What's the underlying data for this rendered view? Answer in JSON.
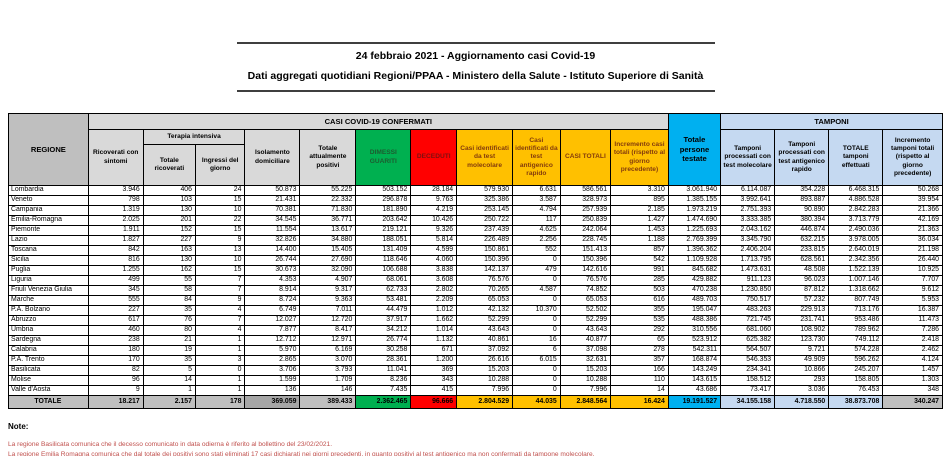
{
  "title": {
    "line1": "24 febbraio 2021 - Aggiornamento casi Covid-19",
    "line2": "Dati aggregati quotidiani Regioni/PPAA - Ministero della Salute - Istituto Superiore di Sanità"
  },
  "table": {
    "header": {
      "regione": "REGIONE",
      "casi_confermati_group": "CASI COVID-19 CONFERMATI",
      "tamponi_group": "TAMPONI",
      "terapia_intensiva_group": "Terapia intensiva",
      "cols": {
        "ricoverati": "Ricoverati con sintomi",
        "totale_ricoverati": "Totale ricoverati",
        "ingressi_giorno": "Ingressi del giorno",
        "isolamento": "Isolamento domiciliare",
        "attualmente_positivi": "Totale attualmente positivi",
        "dimessi_guariti": "DIMESSI GUARITI",
        "deceduti": "DECEDUTI",
        "casi_molecolare": "Casi identificati da test molecolare",
        "casi_antigenico": "Casi identificati da test antigenico rapido",
        "casi_totali": "CASI TOTALI",
        "incremento_casi": "Incremento casi totali (rispetto al giorno precedente)",
        "persone_testate": "Totale persone testate",
        "tamponi_molecolare": "Tamponi processati con test molecolare",
        "tamponi_antigenico": "Tamponi processati con test antigenico rapido",
        "totale_tamponi": "TOTALE tamponi effettuati",
        "incremento_tamponi": "Incremento tamponi totali (rispetto al giorno precedente)"
      }
    },
    "rows": [
      [
        "Lombardia",
        "3.946",
        "406",
        "24",
        "50.873",
        "55.225",
        "503.152",
        "28.184",
        "579.930",
        "6.631",
        "586.561",
        "3.310",
        "3.061.940",
        "6.114.087",
        "354.228",
        "6.468.315",
        "50.268"
      ],
      [
        "Veneto",
        "798",
        "103",
        "15",
        "21.431",
        "22.332",
        "296.878",
        "9.763",
        "325.386",
        "3.587",
        "328.973",
        "895",
        "1.385.155",
        "3.992.641",
        "893.887",
        "4.886.528",
        "39.954"
      ],
      [
        "Campania",
        "1.319",
        "130",
        "10",
        "70.381",
        "71.830",
        "181.890",
        "4.219",
        "253.145",
        "4.794",
        "257.939",
        "2.185",
        "1.973.219",
        "2.751.393",
        "90.890",
        "2.842.283",
        "21.366"
      ],
      [
        "Emilia-Romagna",
        "2.025",
        "201",
        "22",
        "34.545",
        "36.771",
        "203.642",
        "10.426",
        "250.722",
        "117",
        "250.839",
        "1.427",
        "1.474.690",
        "3.333.385",
        "380.394",
        "3.713.779",
        "42.169"
      ],
      [
        "Piemonte",
        "1.911",
        "152",
        "15",
        "11.554",
        "13.617",
        "219.121",
        "9.326",
        "237.439",
        "4.625",
        "242.064",
        "1.453",
        "1.225.693",
        "2.043.162",
        "446.874",
        "2.490.036",
        "21.363"
      ],
      [
        "Lazio",
        "1.827",
        "227",
        "9",
        "32.826",
        "34.880",
        "188.051",
        "5.814",
        "226.489",
        "2.256",
        "228.745",
        "1.188",
        "2.769.399",
        "3.345.790",
        "632.215",
        "3.978.005",
        "36.034"
      ],
      [
        "Toscana",
        "842",
        "163",
        "13",
        "14.400",
        "15.405",
        "131.409",
        "4.599",
        "150.861",
        "552",
        "151.413",
        "857",
        "1.396.362",
        "2.406.204",
        "233.815",
        "2.640.019",
        "21.198"
      ],
      [
        "Sicilia",
        "816",
        "130",
        "10",
        "26.744",
        "27.690",
        "118.646",
        "4.060",
        "150.396",
        "0",
        "150.396",
        "542",
        "1.109.928",
        "1.713.795",
        "628.561",
        "2.342.356",
        "26.440"
      ],
      [
        "Puglia",
        "1.255",
        "162",
        "15",
        "30.673",
        "32.090",
        "106.688",
        "3.838",
        "142.137",
        "479",
        "142.616",
        "991",
        "845.682",
        "1.473.631",
        "48.508",
        "1.522.139",
        "10.925"
      ],
      [
        "Liguria",
        "499",
        "55",
        "7",
        "4.353",
        "4.907",
        "68.061",
        "3.608",
        "76.576",
        "0",
        "76.576",
        "285",
        "429.882",
        "911.123",
        "96.023",
        "1.007.146",
        "7.707"
      ],
      [
        "Friuli Venezia Giulia",
        "345",
        "58",
        "7",
        "8.914",
        "9.317",
        "62.733",
        "2.802",
        "70.265",
        "4.587",
        "74.852",
        "503",
        "470.238",
        "1.230.850",
        "87.812",
        "1.318.662",
        "9.612"
      ],
      [
        "Marche",
        "555",
        "84",
        "9",
        "8.724",
        "9.363",
        "53.481",
        "2.209",
        "65.053",
        "0",
        "65.053",
        "616",
        "489.703",
        "750.517",
        "57.232",
        "807.749",
        "5.953"
      ],
      [
        "P.A. Bolzano",
        "227",
        "35",
        "4",
        "6.749",
        "7.011",
        "44.479",
        "1.012",
        "42.132",
        "10.370",
        "52.502",
        "355",
        "195.047",
        "483.263",
        "229.913",
        "713.176",
        "16.387"
      ],
      [
        "Abruzzo",
        "617",
        "76",
        "7",
        "12.027",
        "12.720",
        "37.917",
        "1.662",
        "52.299",
        "0",
        "52.299",
        "535",
        "488.386",
        "721.745",
        "231.741",
        "953.486",
        "11.473"
      ],
      [
        "Umbria",
        "460",
        "80",
        "4",
        "7.877",
        "8.417",
        "34.212",
        "1.014",
        "43.643",
        "0",
        "43.643",
        "292",
        "310.556",
        "681.060",
        "108.902",
        "789.962",
        "7.286"
      ],
      [
        "Sardegna",
        "238",
        "21",
        "1",
        "12.712",
        "12.971",
        "26.774",
        "1.132",
        "40.861",
        "16",
        "40.877",
        "65",
        "523.912",
        "625.382",
        "123.730",
        "749.112",
        "2.418"
      ],
      [
        "Calabria",
        "180",
        "19",
        "1",
        "5.970",
        "6.169",
        "30.258",
        "671",
        "37.092",
        "6",
        "37.098",
        "278",
        "542.311",
        "564.507",
        "9.721",
        "574.228",
        "2.462"
      ],
      [
        "P.A. Trento",
        "170",
        "35",
        "3",
        "2.865",
        "3.070",
        "28.361",
        "1.200",
        "26.616",
        "6.015",
        "32.631",
        "357",
        "168.874",
        "546.353",
        "49.909",
        "596.262",
        "4.124"
      ],
      [
        "Basilicata",
        "82",
        "5",
        "0",
        "3.706",
        "3.793",
        "11.041",
        "369",
        "15.203",
        "0",
        "15.203",
        "166",
        "143.249",
        "234.341",
        "10.866",
        "245.207",
        "1.457"
      ],
      [
        "Molise",
        "96",
        "14",
        "1",
        "1.599",
        "1.709",
        "8.236",
        "343",
        "10.288",
        "0",
        "10.288",
        "110",
        "143.615",
        "158.512",
        "293",
        "158.805",
        "1.303"
      ],
      [
        "Valle d'Aosta",
        "9",
        "1",
        "1",
        "136",
        "146",
        "7.435",
        "415",
        "7.996",
        "0",
        "7.996",
        "14",
        "43.686",
        "73.417",
        "3.036",
        "76.453",
        "348"
      ]
    ],
    "total_row": [
      "TOTALE",
      "18.217",
      "2.157",
      "178",
      "369.059",
      "389.433",
      "2.362.465",
      "96.666",
      "2.804.529",
      "44.035",
      "2.848.564",
      "16.424",
      "19.191.527",
      "34.155.158",
      "4.718.550",
      "38.873.708",
      "340.247"
    ]
  },
  "notes": {
    "label": "Note:",
    "lines": [
      "La regione Basilicata comunica che il decesso comunicato in data odierna è riferito al bollettino del 23/02/2021.",
      "La regione Emilia Romagna comunica che dal totale dei positivi sono stati eliminati 17 casi dichiarati nei giorni precedenti, in quanto positivi al test antigenico ma non confermati da tampone molecolare.",
      "La regione Molise comunica che 5 pazienti, precedentemente conteggiati tra i casi confermati,  sono stati trasferiti presso altri istituti fuori regione."
    ]
  },
  "colors": {
    "green": "#00B050",
    "red": "#FF0000",
    "yellow": "#FFC000",
    "cyan": "#00B0F0",
    "light_blue": "#C5D9F1",
    "gray": "#BFBFBF",
    "light_gray": "#D9D9D9",
    "selected_gray": "#A6A6A6",
    "note_red": "#C0504D"
  }
}
